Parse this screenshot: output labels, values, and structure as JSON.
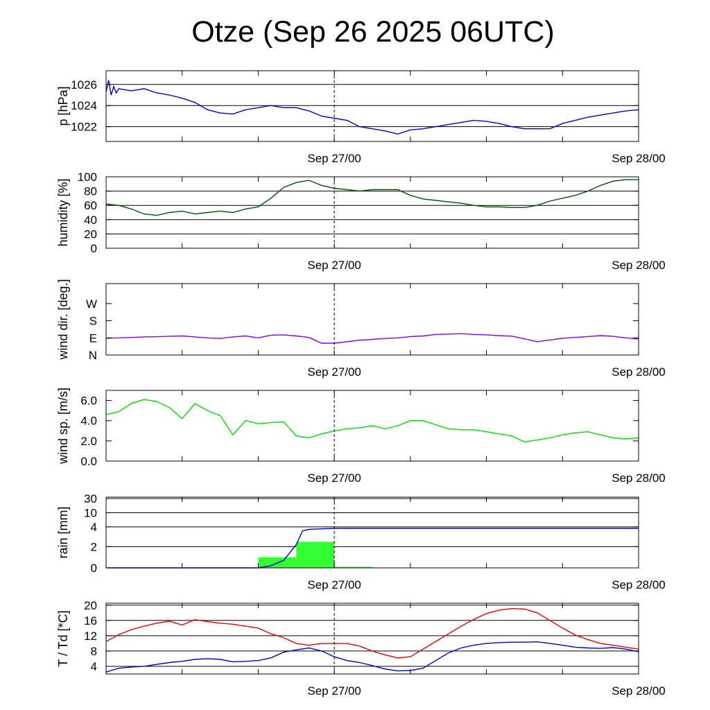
{
  "title": "Otze (Sep 26 2025 06UTC)",
  "chart_data": [
    {
      "type": "line",
      "ylabel": "p [hPa]",
      "x_ticks": [
        "Sep 27/00",
        "Sep 28/00"
      ],
      "ylim": [
        1020.6,
        1027.3
      ],
      "yticks": [
        1022,
        1024,
        1026
      ],
      "ytick_labels": [
        "1022",
        "1024",
        "1026"
      ],
      "grid": [
        1022,
        1024,
        1026
      ],
      "series": [
        {
          "color": "#0000dd",
          "x": [
            0,
            0.2,
            0.4,
            0.6,
            0.8,
            1,
            2,
            3,
            4,
            5,
            6,
            7,
            8,
            9,
            10,
            11,
            12,
            13,
            14,
            15,
            16,
            17,
            18,
            19,
            20,
            21,
            22,
            23,
            24,
            25,
            26,
            27,
            28,
            29,
            30,
            31,
            32,
            33,
            34,
            35,
            36,
            37,
            38,
            39,
            40,
            41,
            42
          ],
          "values": [
            1025.3,
            1026.4,
            1025.0,
            1025.8,
            1025.2,
            1025.6,
            1025.4,
            1025.6,
            1025.2,
            1025.0,
            1024.7,
            1024.3,
            1023.6,
            1023.3,
            1023.2,
            1023.6,
            1023.8,
            1024.0,
            1023.8,
            1023.8,
            1023.5,
            1023.0,
            1022.8,
            1022.6,
            1022.0,
            1021.8,
            1021.6,
            1021.3,
            1021.7,
            1021.8,
            1022.0,
            1022.2,
            1022.4,
            1022.6,
            1022.5,
            1022.3,
            1022.0,
            1021.8,
            1021.8,
            1021.8,
            1022.3,
            1022.6,
            1022.9,
            1023.1,
            1023.3,
            1023.5,
            1023.6
          ]
        }
      ]
    },
    {
      "type": "line",
      "ylabel": "humidity [%]",
      "x_ticks": [
        "Sep 27/00",
        "Sep 28/00"
      ],
      "ylim": [
        0,
        100
      ],
      "yticks": [
        0,
        20,
        40,
        60,
        80,
        100
      ],
      "ytick_labels": [
        "0",
        "20",
        "40",
        "60",
        "80",
        "100"
      ],
      "grid": [
        20,
        40,
        60,
        80
      ],
      "series": [
        {
          "color": "#005500",
          "x": [
            0,
            1,
            2,
            3,
            4,
            5,
            6,
            7,
            8,
            9,
            10,
            11,
            12,
            13,
            14,
            15,
            16,
            17,
            18,
            19,
            20,
            21,
            22,
            23,
            24,
            25,
            26,
            27,
            28,
            29,
            30,
            31,
            32,
            33,
            34,
            35,
            36,
            37,
            38,
            39,
            40,
            41,
            42
          ],
          "values": [
            62,
            60,
            55,
            48,
            46,
            50,
            52,
            48,
            50,
            52,
            50,
            55,
            58,
            70,
            85,
            92,
            95,
            88,
            84,
            82,
            80,
            82,
            82,
            82,
            74,
            69,
            67,
            65,
            63,
            60,
            58,
            58,
            57,
            57,
            60,
            66,
            70,
            74,
            80,
            88,
            94,
            96,
            96
          ]
        }
      ]
    },
    {
      "type": "line",
      "ylabel": "wind dir. [deg.]",
      "x_ticks": [
        "Sep 27/00",
        "Sep 28/00"
      ],
      "ylim": [
        0,
        375
      ],
      "yticks": [
        0,
        90,
        180,
        270
      ],
      "ytick_labels": [
        "N",
        "E",
        "S",
        "W"
      ],
      "grid": [],
      "series": [
        {
          "color": "#8000ff",
          "x": [
            0,
            1,
            2,
            3,
            4,
            5,
            6,
            7,
            8,
            9,
            10,
            11,
            12,
            13,
            14,
            15,
            16,
            17,
            18,
            19,
            20,
            21,
            22,
            23,
            24,
            25,
            26,
            27,
            28,
            29,
            30,
            31,
            32,
            33,
            34,
            35,
            36,
            37,
            38,
            39,
            40,
            41,
            42
          ],
          "values": [
            88,
            90,
            92,
            95,
            96,
            98,
            100,
            95,
            90,
            87,
            95,
            100,
            90,
            104,
            106,
            100,
            92,
            62,
            62,
            70,
            78,
            82,
            87,
            90,
            97,
            100,
            108,
            110,
            112,
            108,
            106,
            102,
            99,
            85,
            70,
            79,
            88,
            92,
            97,
            102,
            98,
            90,
            84
          ]
        }
      ]
    },
    {
      "type": "line",
      "ylabel": "wind sp. [m/s]",
      "x_ticks": [
        "Sep 27/00",
        "Sep 28/00"
      ],
      "ylim": [
        0,
        7
      ],
      "yticks": [
        0,
        2,
        4,
        6
      ],
      "ytick_labels": [
        "0.0",
        "2.0",
        "4.0",
        "6.0"
      ],
      "grid": [],
      "series": [
        {
          "color": "#00dd00",
          "x": [
            0,
            1,
            2,
            3,
            4,
            5,
            6,
            7,
            8,
            9,
            10,
            11,
            12,
            13,
            14,
            15,
            16,
            17,
            18,
            19,
            20,
            21,
            22,
            23,
            24,
            25,
            26,
            27,
            28,
            29,
            30,
            31,
            32,
            33,
            34,
            35,
            36,
            37,
            38,
            39,
            40,
            41,
            42
          ],
          "values": [
            4.6,
            4.9,
            5.7,
            6.1,
            5.9,
            5.3,
            4.2,
            5.7,
            5.0,
            4.5,
            2.6,
            4.0,
            3.7,
            3.8,
            3.9,
            2.5,
            2.3,
            2.7,
            3.0,
            3.2,
            3.3,
            3.5,
            3.2,
            3.5,
            4.0,
            4.0,
            3.6,
            3.2,
            3.1,
            3.1,
            2.9,
            2.7,
            2.5,
            1.9,
            2.1,
            2.3,
            2.6,
            2.8,
            2.9,
            2.6,
            2.3,
            2.2,
            2.3
          ]
        }
      ]
    },
    {
      "type": "bar+line",
      "ylabel": "rain [mm]",
      "x_ticks": [
        "Sep 27/00",
        "Sep 28/00"
      ],
      "ylim": [
        0,
        32
      ],
      "yticks": [
        0,
        2,
        4,
        10,
        30
      ],
      "ytick_labels": [
        "0",
        "2",
        "4",
        "10",
        "30"
      ],
      "grid": [
        2,
        4,
        10,
        30
      ],
      "bars": {
        "color": "#33ff33",
        "edges": [
          12,
          15,
          18,
          21
        ],
        "values": [
          1.0,
          2.5,
          0.1
        ]
      },
      "series": [
        {
          "color": "#0000dd",
          "x": [
            0,
            10,
            11,
            12,
            13,
            14,
            15,
            15.5,
            16,
            17,
            18,
            42
          ],
          "values": [
            0,
            0,
            0,
            0,
            0.2,
            0.7,
            2.2,
            3.6,
            3.75,
            3.8,
            3.85,
            3.85
          ]
        }
      ]
    },
    {
      "type": "line",
      "ylabel": "T / Td [*C]",
      "x_ticks": [
        "Sep 27/00",
        "Sep 28/00"
      ],
      "ylim": [
        2,
        20.5
      ],
      "yticks": [
        4,
        8,
        12,
        16,
        20
      ],
      "ytick_labels": [
        "4",
        "8",
        "12",
        "16",
        "20"
      ],
      "grid": [
        4,
        8,
        12,
        16,
        20
      ],
      "series": [
        {
          "color": "#ee0000",
          "x": [
            0,
            1,
            2,
            3,
            4,
            5,
            6,
            7,
            8,
            9,
            10,
            11,
            12,
            13,
            14,
            15,
            16,
            17,
            18,
            19,
            20,
            21,
            22,
            23,
            24,
            25,
            26,
            27,
            28,
            29,
            30,
            31,
            32,
            33,
            34,
            35,
            36,
            37,
            38,
            39,
            40,
            41,
            42
          ],
          "values": [
            10.5,
            12.3,
            13.6,
            14.5,
            15.3,
            15.8,
            14.8,
            16.2,
            15.7,
            15.3,
            15.0,
            14.5,
            14.0,
            12.5,
            11.5,
            10.0,
            9.5,
            10.0,
            10.0,
            10.0,
            9.3,
            8.0,
            7.0,
            6.2,
            6.5,
            8.5,
            10.5,
            12.5,
            14.5,
            16.3,
            17.8,
            18.7,
            19.1,
            19.0,
            18.0,
            16.0,
            14.0,
            12.2,
            11.0,
            10.0,
            9.5,
            9.0,
            8.5
          ]
        },
        {
          "color": "#0000dd",
          "x": [
            0,
            1,
            2,
            3,
            4,
            5,
            6,
            7,
            8,
            9,
            10,
            11,
            12,
            13,
            14,
            15,
            16,
            17,
            18,
            19,
            20,
            21,
            22,
            23,
            24,
            25,
            26,
            27,
            28,
            29,
            30,
            31,
            32,
            33,
            34,
            35,
            36,
            37,
            38,
            39,
            40,
            41,
            42
          ],
          "values": [
            2.5,
            3.5,
            3.8,
            4.0,
            4.5,
            5.0,
            5.3,
            5.8,
            6.0,
            5.8,
            5.2,
            5.3,
            5.5,
            6.2,
            7.7,
            8.3,
            8.8,
            8.0,
            6.5,
            5.5,
            5.0,
            4.2,
            3.3,
            2.8,
            2.9,
            3.5,
            5.5,
            7.5,
            8.8,
            9.5,
            10.0,
            10.2,
            10.3,
            10.3,
            10.4,
            10.0,
            9.5,
            9.0,
            8.8,
            8.7,
            8.9,
            8.5,
            7.8
          ]
        }
      ]
    }
  ]
}
